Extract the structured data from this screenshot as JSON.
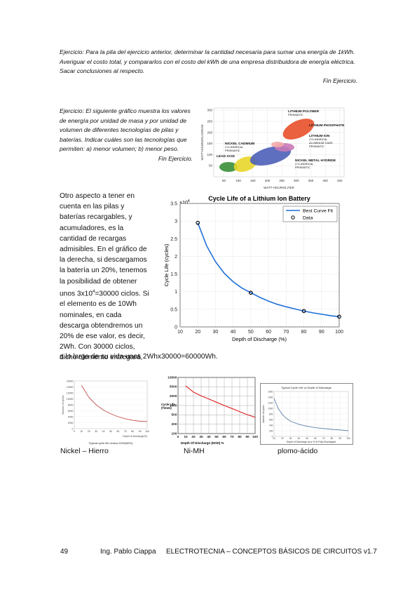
{
  "exercise1": {
    "text": "Ejercicio: Para la pila del ejercicio anterior, determinar la cantidad necesaria para sumar una energía de 1kWh. Averiguar el costo total, y compararlos con el costo del kWh de una empresa distribuidora de energía eléctrica. Sacar conclusiones al respecto.",
    "end": "Fin Ejercicio."
  },
  "exercise2": {
    "text": "Ejercicio: El siguiente gráfico muestra los valores de energía por unidad de masa y por unidad de volumen de diferentes tecnologías de pilas y baterías. Indicar cuáles son las tecnologías que permiten: a) menor volumen; b) menor peso.",
    "end": "Fin Ejercicio."
  },
  "body_text": {
    "part1": "Otro aspecto a tener en cuenta en las pilas y baterías recargables, y acumuladores, es la cantidad de recargas admisibles. En el gráfico de la derecha, si descargamos la batería un 20%, tenemos la posibilidad de obtener unos 3x10",
    "sup": "4",
    "part2": "=30000 ciclos. Si el elemento es de 10Wh nominales, en cada descarga obtendremos un 20% de ese valor, es decir, 2Wh. Con 30000 ciclos, dicho elemento entregará,",
    "part3": "a lo largo de su vida unos 2Whx30000=60000Wh."
  },
  "chart_data": [
    {
      "type": "scatter",
      "xlabel": "WATT-HOURS/LITER",
      "ylabel": "WATT-HOURS/KILOGRAM",
      "x_ticks": [
        "50",
        "100",
        "150",
        "200",
        "250",
        "300",
        "350",
        "400",
        "450"
      ],
      "y_ticks": [
        "50",
        "100",
        "150",
        "200",
        "250",
        "300"
      ],
      "regions": [
        {
          "name": "LITHIUM POLYMER",
          "sub": "PRISMATIC",
          "color": "#e8502a"
        },
        {
          "name": "LITHIUM PHOSPHATE",
          "sub": "",
          "color": "#e8502a"
        },
        {
          "name": "LITHIUM ION",
          "sub": "CYLINDRICAL\nALUMINUM CANS\nPRISMATIC",
          "color": "#c97ab8"
        },
        {
          "name": "NICKEL CADMIUM",
          "sub": "CYLINDRICAL\nPRISMATIC",
          "color": "#e9d62a"
        },
        {
          "name": "LEAD ACID",
          "sub": "",
          "color": "#3a8f3a"
        },
        {
          "name": "NICKEL METAL HYDRIDE",
          "sub": "CYLINDRICAL\nPRISMATIC",
          "color": "#4c5fb8"
        }
      ]
    },
    {
      "type": "line",
      "title": "Cycle Life of a Lithium Ion Battery",
      "xlabel": "Depth of Discharge (%)",
      "ylabel": "Cycle Life (cycles)",
      "y_multiplier": "×10",
      "y_multiplier_exp": "4",
      "xlim": [
        10,
        100
      ],
      "ylim": [
        0,
        3.5
      ],
      "x_ticks": [
        10,
        20,
        30,
        40,
        50,
        60,
        70,
        80,
        90,
        100
      ],
      "y_ticks": [
        0,
        0.5,
        1,
        1.5,
        2,
        2.5,
        3,
        3.5
      ],
      "series": [
        {
          "name": "Best Curve Fit",
          "x": [
            20,
            25,
            30,
            35,
            40,
            45,
            50,
            55,
            60,
            65,
            70,
            75,
            80,
            85,
            90,
            95,
            100
          ],
          "y": [
            2.95,
            2.3,
            1.85,
            1.52,
            1.28,
            1.1,
            0.97,
            0.84,
            0.73,
            0.64,
            0.57,
            0.51,
            0.45,
            0.4,
            0.36,
            0.32,
            0.29
          ]
        },
        {
          "name": "Data",
          "x": [
            20,
            50,
            80,
            100
          ],
          "y": [
            2.95,
            0.97,
            0.45,
            0.29
          ]
        }
      ],
      "legend": "top-right"
    },
    {
      "type": "line",
      "title": "",
      "xlabel": "Depth of discharge(%)",
      "caption": "Typical cycle life versus DOD(NiFe)",
      "ylabel": "Number of cycles",
      "x_ticks": [
        "0",
        "10",
        "20",
        "30",
        "40",
        "50",
        "60",
        "70",
        "80",
        "90",
        "100"
      ],
      "y_ticks": [
        "0",
        "2000",
        "4000",
        "6000",
        "8000",
        "10000",
        "12000",
        "14000",
        "16000"
      ],
      "series": [
        {
          "x": [
            10,
            20,
            30,
            40,
            50,
            60,
            70,
            80,
            90,
            100
          ],
          "y": [
            14500,
            10500,
            8000,
            6200,
            5000,
            4000,
            3300,
            2800,
            2500,
            2400
          ]
        }
      ]
    },
    {
      "type": "line",
      "xlabel": "Depth Of Discharge (DOD) %",
      "ylabel": "Cycle Life",
      "ylabel2": "(Times)",
      "x_ticks": [
        "0",
        "10",
        "20",
        "30",
        "40",
        "50",
        "60",
        "70",
        "80",
        "90",
        "100"
      ],
      "y_ticks": [
        "10000",
        "5000",
        "2000",
        "1000",
        "500",
        "200",
        "100"
      ],
      "series": [
        {
          "x": [
            10,
            20,
            30,
            40,
            50,
            60,
            70,
            80,
            90,
            100
          ],
          "y": [
            5000,
            3000,
            2200,
            1700,
            1300,
            1000,
            780,
            600,
            470,
            380
          ]
        }
      ]
    },
    {
      "type": "line",
      "title": "Typical Cycle Life vs Depth of Discharge",
      "xlabel": "Depth of Discharge as a % of Fully Discharged",
      "ylabel": "Number of cycles",
      "x_ticks": [
        "10",
        "20",
        "30",
        "40",
        "50",
        "60",
        "70",
        "80",
        "90",
        "100"
      ],
      "y_ticks": [
        "0",
        "200",
        "400",
        "600",
        "800",
        "1000",
        "1200",
        "1400",
        "1600"
      ],
      "series": [
        {
          "x": [
            10,
            15,
            20,
            25,
            30,
            40,
            50,
            60,
            70,
            80,
            90,
            100
          ],
          "y": [
            1350,
            1000,
            780,
            640,
            540,
            430,
            360,
            310,
            280,
            250,
            230,
            200
          ]
        }
      ]
    }
  ],
  "captions": {
    "nickel": "Nickel – Hierro",
    "nimh": "Ni-MH",
    "lead": "plomo-ácido"
  },
  "footer": {
    "page": "49",
    "author": "Ing. Pablo Ciappa",
    "title": "ELECTROTECNIA – CONCEPTOS BÁSICOS DE CIRCUITOS v1.7"
  }
}
